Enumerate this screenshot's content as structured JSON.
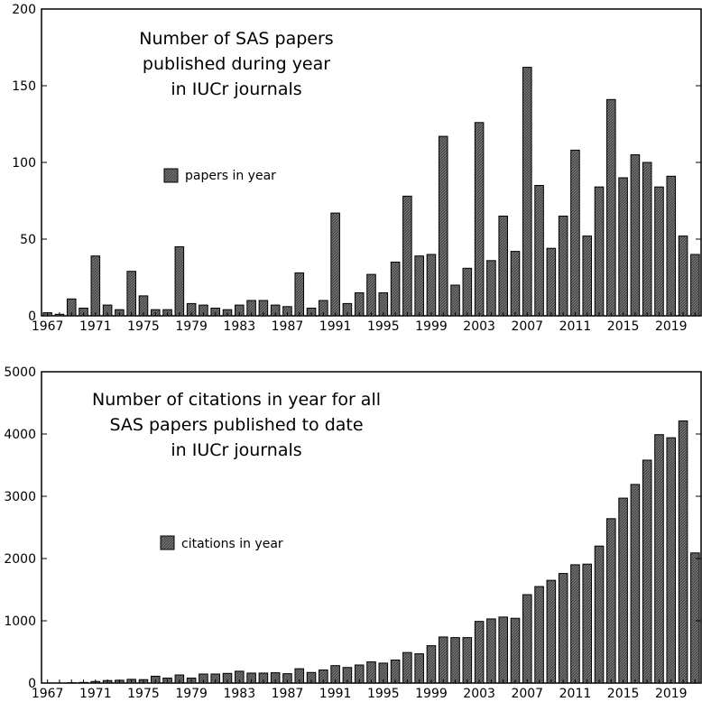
{
  "chart_data": [
    {
      "type": "bar",
      "title_lines": [
        "Number of SAS papers",
        "published during year",
        "in IUCr journals"
      ],
      "legend": "papers in year",
      "ylim": [
        0,
        200
      ],
      "y_ticks": [
        0,
        50,
        100,
        150,
        200
      ],
      "x_tick_labels": [
        "1967",
        "1971",
        "1975",
        "1979",
        "1983",
        "1987",
        "1991",
        "1995",
        "1999",
        "2003",
        "2007",
        "2011",
        "2015",
        "2019"
      ],
      "categories": [
        1967,
        1968,
        1969,
        1970,
        1971,
        1972,
        1973,
        1974,
        1975,
        1976,
        1977,
        1978,
        1979,
        1980,
        1981,
        1982,
        1983,
        1984,
        1985,
        1986,
        1987,
        1988,
        1989,
        1990,
        1991,
        1992,
        1993,
        1994,
        1995,
        1996,
        1997,
        1998,
        1999,
        2000,
        2001,
        2002,
        2003,
        2004,
        2005,
        2006,
        2007,
        2008,
        2009,
        2010,
        2011,
        2012,
        2013,
        2014,
        2015,
        2016,
        2017,
        2018,
        2019,
        2020,
        2021
      ],
      "values": [
        2,
        1,
        11,
        5,
        39,
        7,
        4,
        29,
        13,
        4,
        4,
        45,
        8,
        7,
        5,
        4,
        7,
        10,
        10,
        7,
        6,
        28,
        5,
        10,
        67,
        8,
        15,
        27,
        15,
        35,
        78,
        39,
        40,
        117,
        20,
        31,
        126,
        36,
        65,
        42,
        162,
        85,
        44,
        65,
        108,
        52,
        84,
        141,
        90,
        105,
        100,
        84,
        91,
        52,
        40
      ]
    },
    {
      "type": "bar",
      "title_lines": [
        "Number of citations in year for all",
        "SAS papers published to date",
        "in IUCr journals"
      ],
      "legend": "citations in year",
      "ylim": [
        0,
        5000
      ],
      "y_ticks": [
        0,
        1000,
        2000,
        3000,
        4000,
        5000
      ],
      "x_tick_labels": [
        "1967",
        "1971",
        "1975",
        "1979",
        "1983",
        "1987",
        "1991",
        "1995",
        "1999",
        "2003",
        "2007",
        "2011",
        "2015",
        "2019"
      ],
      "categories": [
        1967,
        1968,
        1969,
        1970,
        1971,
        1972,
        1973,
        1974,
        1975,
        1976,
        1977,
        1978,
        1979,
        1980,
        1981,
        1982,
        1983,
        1984,
        1985,
        1986,
        1987,
        1988,
        1989,
        1990,
        1991,
        1992,
        1993,
        1994,
        1995,
        1996,
        1997,
        1998,
        1999,
        2000,
        2001,
        2002,
        2003,
        2004,
        2005,
        2006,
        2007,
        2008,
        2009,
        2010,
        2011,
        2012,
        2013,
        2014,
        2015,
        2016,
        2017,
        2018,
        2019,
        2020,
        2021
      ],
      "values": [
        0,
        0,
        5,
        10,
        25,
        40,
        45,
        60,
        55,
        110,
        80,
        130,
        80,
        145,
        145,
        155,
        190,
        160,
        160,
        165,
        150,
        230,
        170,
        210,
        280,
        250,
        290,
        340,
        320,
        370,
        490,
        470,
        600,
        740,
        730,
        730,
        990,
        1030,
        1060,
        1040,
        1420,
        1550,
        1650,
        1760,
        1900,
        1910,
        2200,
        2640,
        2970,
        3190,
        3580,
        3990,
        3940,
        4210,
        2090
      ]
    }
  ]
}
